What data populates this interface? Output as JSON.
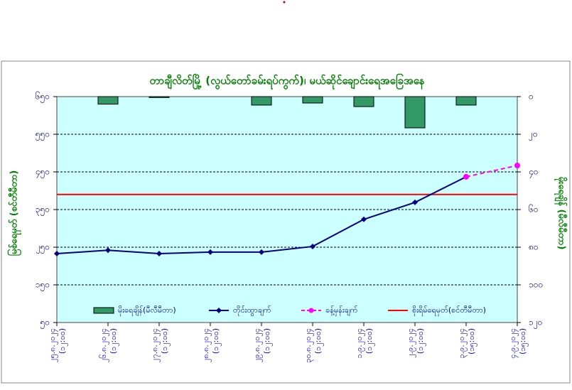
{
  "chart_data": {
    "type": "bar_line",
    "title": "တာချီလိတ်မြို့ (လွယ်တော်ခမ်းရပ်ကွက်)၊ မယ်ဆိုင်ချောင်းရေအခြေအနေ",
    "y_label": "မြစ်ရေမှတ် (စင်တီမီတာ)",
    "y2_label": "မိုးရေချိန် (မီလီမီတာ)",
    "categories": [
      "၂၅.၈.၂၀၂၄",
      "၂၆.၈.၂၀၂၄",
      "၂၇.၈.၂၀၂၄",
      "၂၈.၈.၂၀၂၄",
      "၂၉.၈.၂၀၂၄",
      "၃၀.၈.၂၀၂၄",
      "၁.၉.၂၀၂၄",
      "၂.၉.၂၀၂၄",
      "၃.၉.၂၀၂၄",
      "၄.၉.၂၀၂၄"
    ],
    "category_times": [
      "(၁၂:၀၀)",
      "(၁၂:၀၀)",
      "(၁၂:၀၀)",
      "(၁၂:၀၀)",
      "(၁၂:၀၀)",
      "(၁၂:၀၀)",
      "(၁၂:၀၀)",
      "(၁၂:၀၀)",
      "(၁၅:၀၀)",
      "(၁၅:၀၀)"
    ],
    "series": [
      {
        "name": "မိုးရေချိန်(မီလီမီတာ)",
        "type": "bar",
        "axis": "y2",
        "color": "#339966",
        "values": [
          null,
          4,
          0.5,
          null,
          4.5,
          3.4,
          5.3,
          16.6,
          4.5,
          null
        ]
      },
      {
        "name": "တိုင်းထွာချက်",
        "type": "line",
        "color": "#000080",
        "values": [
          233,
          242,
          233,
          237,
          237,
          252,
          324,
          369,
          437,
          null
        ]
      },
      {
        "name": "ခန့်မှန်းချက်",
        "type": "line",
        "dashed": true,
        "color": "#ff00ff",
        "values": [
          null,
          null,
          null,
          null,
          null,
          null,
          null,
          null,
          437,
          467
        ]
      }
    ],
    "threshold": {
      "name": "စိုးရိမ်ရေမှတ်(စင်တီမီတာ)",
      "value": 390,
      "color": "#ff0000"
    },
    "ylim": [
      50,
      650
    ],
    "yticks": [
      {
        "value": 50,
        "label": "၅၀"
      },
      {
        "value": 150,
        "label": "၁၅၀"
      },
      {
        "value": 250,
        "label": "၂၅၀"
      },
      {
        "value": 350,
        "label": "၃၅၀"
      },
      {
        "value": 450,
        "label": "၄၅၀"
      },
      {
        "value": 550,
        "label": "၅၅၀"
      },
      {
        "value": 650,
        "label": "၆၅၀"
      }
    ],
    "y2lim": [
      0,
      120
    ],
    "y2_inverted": true,
    "y2ticks": [
      {
        "value": 0,
        "label": "၀"
      },
      {
        "value": 20,
        "label": "၂၀"
      },
      {
        "value": 40,
        "label": "၄၀"
      },
      {
        "value": 60,
        "label": "၆၀"
      },
      {
        "value": 80,
        "label": "၈၀"
      },
      {
        "value": 100,
        "label": "၁၀၀"
      },
      {
        "value": 120,
        "label": "၁၂၀"
      }
    ],
    "grid": true
  }
}
